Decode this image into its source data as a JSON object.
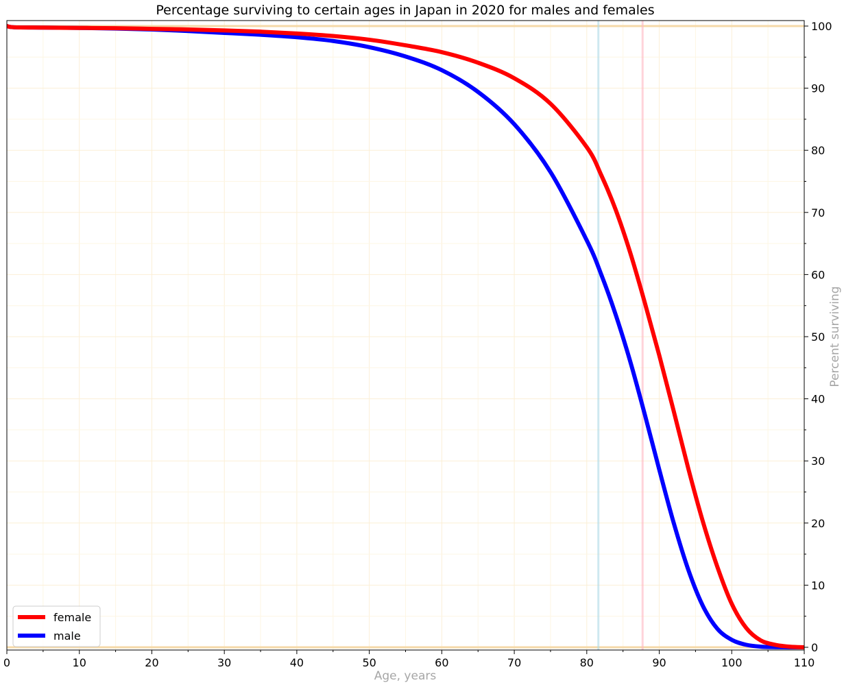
{
  "chart_data": {
    "type": "line",
    "title": "Percentage surviving to certain ages in Japan in 2020 for males and females",
    "xlabel": "Age, years",
    "ylabel": "Percent surviving",
    "xlim": [
      0,
      110
    ],
    "ylim": [
      0,
      100
    ],
    "x_ticks": [
      0,
      10,
      20,
      30,
      40,
      50,
      60,
      70,
      80,
      90,
      100,
      110
    ],
    "y_ticks": [
      0,
      10,
      20,
      30,
      40,
      50,
      60,
      70,
      80,
      90,
      100
    ],
    "y_axis_side": "right",
    "grid": "on (major and minor)",
    "legend_position": "bottom-left",
    "reference_lines": {
      "horizontal": [
        0,
        100
      ],
      "vertical": [
        {
          "x": 81.6,
          "color": "#add8e6"
        },
        {
          "x": 87.7,
          "color": "#ffb6c1"
        }
      ]
    },
    "x": [
      0,
      1,
      5,
      10,
      15,
      20,
      25,
      30,
      35,
      40,
      45,
      50,
      55,
      60,
      65,
      70,
      75,
      80,
      82,
      84,
      86,
      88,
      90,
      92,
      94,
      96,
      98,
      100,
      102,
      104,
      106,
      108,
      110
    ],
    "series": [
      {
        "name": "female",
        "color": "#ff0000",
        "values": [
          100,
          99.8,
          99.75,
          99.7,
          99.65,
          99.55,
          99.45,
          99.3,
          99.1,
          98.8,
          98.4,
          97.8,
          96.9,
          95.8,
          94.1,
          91.6,
          87.5,
          80.5,
          76,
          70.4,
          63.5,
          55.5,
          47,
          38,
          28.8,
          20.3,
          13,
          7,
          3.1,
          1.1,
          0.4,
          0.1,
          0
        ]
      },
      {
        "name": "male",
        "color": "#0000ff",
        "values": [
          100,
          99.8,
          99.75,
          99.7,
          99.6,
          99.45,
          99.2,
          98.9,
          98.6,
          98.2,
          97.6,
          96.6,
          95.1,
          92.9,
          89.4,
          84.2,
          76.5,
          65.5,
          60,
          53.5,
          46,
          37.5,
          28.6,
          20,
          12.5,
          6.7,
          3,
          1.2,
          0.4,
          0.1,
          0.03,
          0,
          0
        ]
      }
    ]
  }
}
